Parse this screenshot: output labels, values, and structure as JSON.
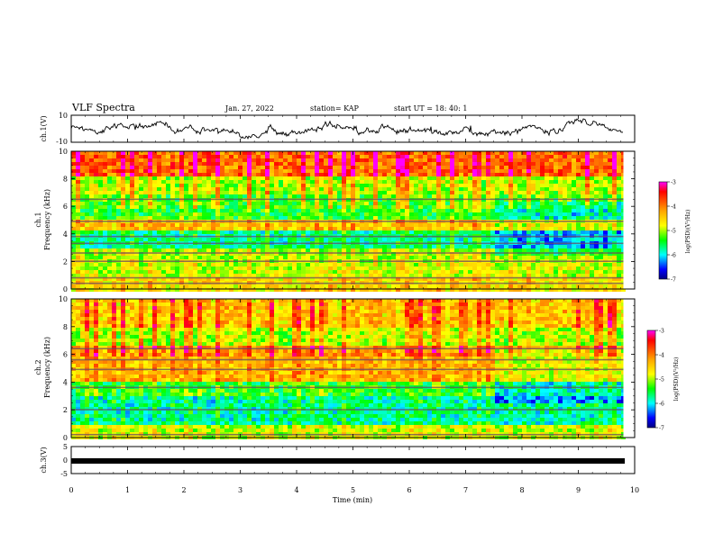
{
  "header": {
    "title": "VLF Spectra",
    "date": "Jan. 27, 2022",
    "station": "station= KAP",
    "start": "start UT =   18: 40: 1"
  },
  "chart_data": [
    {
      "type": "line",
      "name": "ch1-waveform",
      "ylabel": "ch.1(V)",
      "ylim": [
        -10,
        10
      ],
      "yticks": [
        "10",
        "-10"
      ],
      "xlim": [
        0,
        10
      ],
      "x_extent": [
        0,
        9.8
      ],
      "baseline": 0,
      "envelope_amplitude": 4
    },
    {
      "type": "heatmap",
      "name": "ch1-spectrogram",
      "ylabel": "ch.1 Frequency (kHz)",
      "ylim": [
        0,
        10
      ],
      "yticks": [
        "0",
        "2",
        "4",
        "6",
        "8",
        "10"
      ],
      "xlim": [
        0,
        10
      ],
      "x_extent": [
        0,
        9.8
      ],
      "colorbar": {
        "label": "log(PSD)(V²/Hz)",
        "range": [
          -7,
          -3
        ],
        "ticks": [
          "-3",
          "-4",
          "-5",
          "-6",
          "-7"
        ],
        "colors": [
          "#ff00ff",
          "#ff0000",
          "#ffa500",
          "#ffff00",
          "#00ff00",
          "#00ffff",
          "#0000ff",
          "#000080"
        ]
      },
      "bands": [
        {
          "freq": 0.4,
          "kind": "dark"
        },
        {
          "freq": 0.8,
          "kind": "dark"
        },
        {
          "freq": 2.0,
          "kind": "dark"
        },
        {
          "freq": 2.6,
          "kind": "dark"
        },
        {
          "freq": 3.3,
          "kind": "dark"
        },
        {
          "freq": 3.8,
          "kind": "dark"
        },
        {
          "freq": 4.9,
          "kind": "dark"
        },
        {
          "freq": 6.5,
          "kind": "dark"
        }
      ],
      "change_at_min": 7.5
    },
    {
      "type": "heatmap",
      "name": "ch2-spectrogram",
      "ylabel": "ch.2 Frequency (kHz)",
      "ylim": [
        0,
        10
      ],
      "yticks": [
        "0",
        "2",
        "4",
        "6",
        "8",
        "10"
      ],
      "xlim": [
        0,
        10
      ],
      "x_extent": [
        0,
        9.8
      ],
      "colorbar": {
        "label": "log(PSD)(V²/Hz)",
        "range": [
          -7,
          -3
        ],
        "ticks": [
          "-3",
          "-4",
          "-5",
          "-6",
          "-7"
        ],
        "colors": [
          "#ff00ff",
          "#ff0000",
          "#ffa500",
          "#ffff00",
          "#00ff00",
          "#00ffff",
          "#0000ff",
          "#000080"
        ]
      },
      "bands": [
        {
          "freq": 0.2,
          "kind": "dark"
        },
        {
          "freq": 2.0,
          "kind": "dark"
        },
        {
          "freq": 3.6,
          "kind": "dark"
        },
        {
          "freq": 4.9,
          "kind": "dark"
        },
        {
          "freq": 5.6,
          "kind": "dark"
        },
        {
          "freq": 6.4,
          "kind": "dark"
        }
      ],
      "change_at_min": 7.5
    },
    {
      "type": "line",
      "name": "ch3-waveform",
      "ylabel": "ch.3(V)",
      "ylim": [
        -5,
        5
      ],
      "yticks": [
        "5",
        "0",
        "-5"
      ],
      "xlim": [
        0,
        10
      ],
      "x_extent": [
        0,
        9.8
      ],
      "value": 0,
      "xlabel": "Time (min)",
      "xticks": [
        "0",
        "1",
        "2",
        "3",
        "4",
        "5",
        "6",
        "7",
        "8",
        "9",
        "10"
      ]
    }
  ]
}
